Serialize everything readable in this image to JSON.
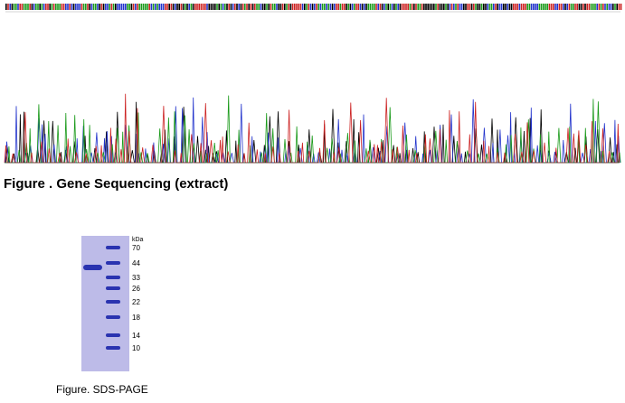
{
  "sequencing": {
    "caption": "Figure . Gene Sequencing (extract)"
  },
  "gel": {
    "unit_label": "kDa",
    "marker_labels": [
      "70",
      "44",
      "33",
      "26",
      "22",
      "18",
      "14",
      "10"
    ],
    "caption": "Figure. SDS-PAGE"
  }
}
